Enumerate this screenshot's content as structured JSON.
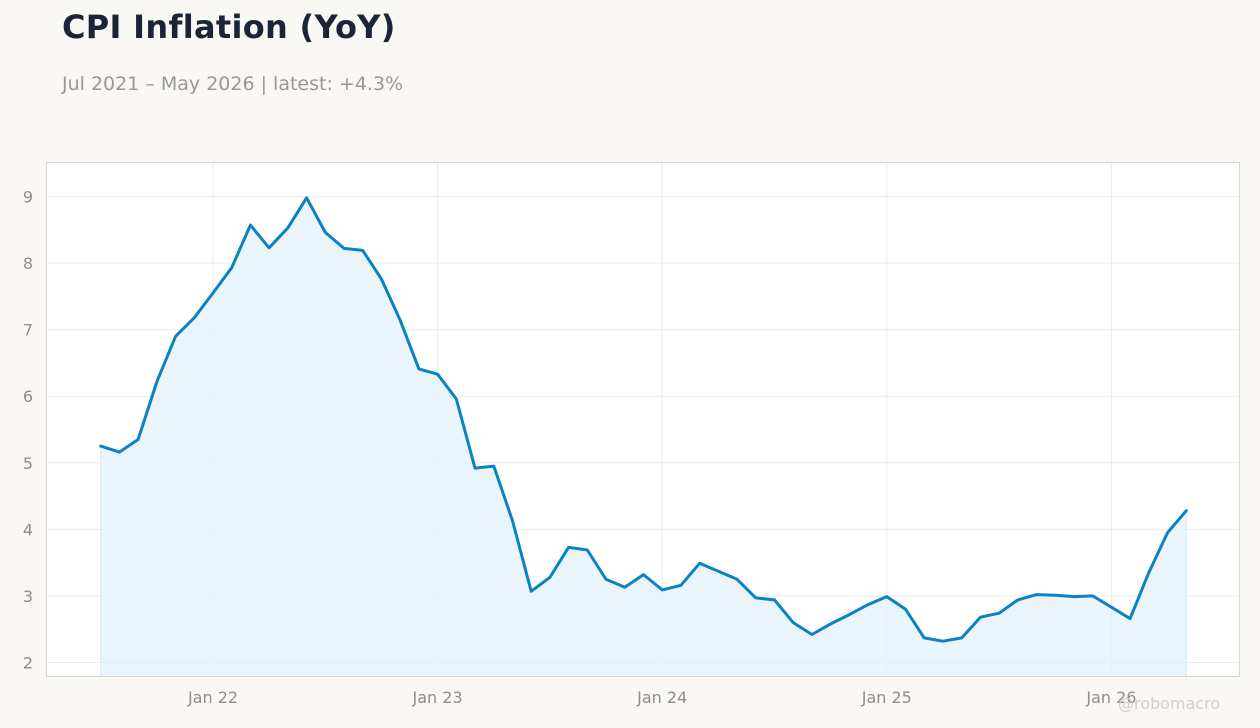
{
  "header": {
    "title": "CPI Inflation (YoY)",
    "subtitle": "Jul 2021 – May 2026 | latest: +4.3%"
  },
  "watermark": "@robomacro",
  "colors": {
    "line": "#0a82c4",
    "fill": "#e3f1fa",
    "grid": "#ececec",
    "tick_text": "#8f8d88",
    "panel_border": "#d9d7d0",
    "background": "#f9f8f5"
  },
  "chart_data": {
    "type": "area",
    "title": "CPI Inflation (YoY)",
    "subtitle": "Jul 2021 – May 2026 | latest: +4.3%",
    "xlabel": "",
    "ylabel": "",
    "ylim": [
      1.8,
      9.5
    ],
    "yticks": [
      2,
      3,
      4,
      5,
      6,
      7,
      8,
      9
    ],
    "xtick_labels": [
      "Jan 22",
      "Jan 23",
      "Jan 24",
      "Jan 25",
      "Jan 26"
    ],
    "xtick_dates": [
      "2022-01",
      "2023-01",
      "2024-01",
      "2025-01",
      "2026-01"
    ],
    "grid": true,
    "series": [
      {
        "x": [
          "2021-07",
          "2021-08",
          "2021-09",
          "2021-10",
          "2021-11",
          "2021-12",
          "2022-01",
          "2022-02",
          "2022-03",
          "2022-04",
          "2022-05",
          "2022-06",
          "2022-07",
          "2022-08",
          "2022-09",
          "2022-10",
          "2022-11",
          "2022-12",
          "2023-01",
          "2023-02",
          "2023-03",
          "2023-04",
          "2023-05",
          "2023-06",
          "2023-07",
          "2023-08",
          "2023-09",
          "2023-10",
          "2023-11",
          "2023-12",
          "2024-01",
          "2024-02",
          "2024-03",
          "2024-04",
          "2024-05",
          "2024-06",
          "2024-07",
          "2024-08",
          "2024-09",
          "2024-10",
          "2024-11",
          "2024-12",
          "2025-01",
          "2025-02",
          "2025-03",
          "2025-04",
          "2025-05",
          "2025-06",
          "2025-07",
          "2025-08",
          "2025-09",
          "2025-10",
          "2025-11",
          "2025-12",
          "2026-01",
          "2026-02",
          "2026-03",
          "2026-04",
          "2026-05"
        ],
        "values": [
          5.25,
          5.16,
          5.35,
          6.22,
          6.9,
          7.18,
          7.55,
          7.93,
          8.57,
          8.23,
          8.53,
          8.98,
          8.46,
          8.22,
          8.19,
          7.76,
          7.14,
          6.41,
          6.33,
          5.96,
          4.92,
          4.95,
          4.13,
          3.07,
          3.28,
          3.73,
          3.69,
          3.25,
          3.13,
          3.32,
          3.09,
          3.16,
          3.49,
          3.37,
          3.25,
          2.97,
          2.94,
          2.6,
          2.42,
          2.58,
          2.72,
          2.87,
          2.99,
          2.8,
          2.37,
          2.32,
          2.37,
          2.68,
          2.74,
          2.94,
          3.02,
          3.01,
          2.99,
          3.0,
          2.83,
          2.66,
          3.35,
          3.95,
          4.28
        ]
      }
    ]
  }
}
